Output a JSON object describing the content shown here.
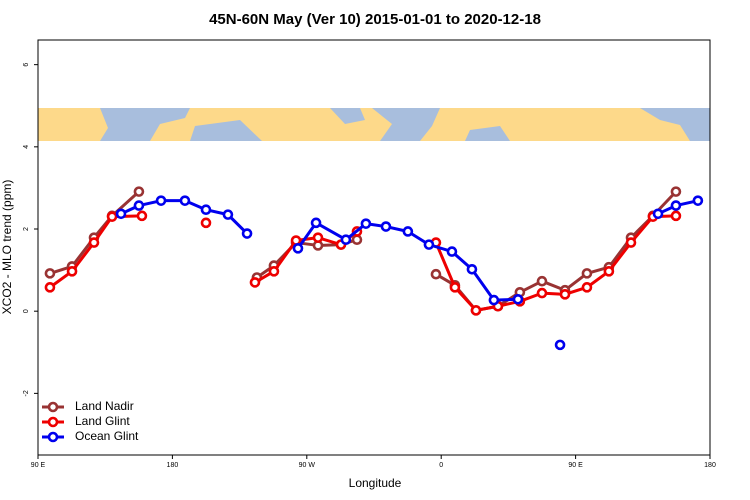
{
  "chart_data": {
    "type": "line",
    "title": "45N-60N May (Ver 10)   2015-01-01 to 2020-12-18",
    "x_label": "Longitude",
    "y_label": "XCO2 - MLO trend (ppm)",
    "xlim": [
      90,
      540
    ],
    "ylim": [
      -3.5,
      6.6
    ],
    "xticks": [
      {
        "value": 90,
        "label": "90 E"
      },
      180,
      {
        "value": 270,
        "label": "90 W"
      },
      {
        "value": 360,
        "label": "0"
      },
      {
        "value": 450,
        "label": "90 E"
      },
      {
        "value": 540,
        "label": "180"
      }
    ],
    "yticks": [
      -2,
      0,
      2,
      4,
      6
    ],
    "legend": "bottom-left",
    "series": [
      {
        "name": "Land Nadir",
        "color": "#993333",
        "x": [
          98,
          112.8,
          127.5,
          139.6,
          157.6,
          180,
          236.6,
          248,
          262.8,
          277.5,
          292.9,
          303.6,
          330,
          356.5,
          369.2,
          383.3,
          398,
          412.7,
          427.5,
          442.9,
          457.6,
          472.3,
          487.1,
          501.8,
          517.2
        ],
        "values": [
          0.92,
          1.09,
          1.79,
          2.32,
          2.91,
          null,
          0.82,
          1.11,
          1.67,
          1.6,
          1.62,
          1.74,
          null,
          0.9,
          0.63,
          0.02,
          0.12,
          0.46,
          0.73,
          0.51,
          0.92,
          1.07,
          1.79,
          2.32,
          2.91
        ]
      },
      {
        "name": "Land Glint",
        "color": "#ee0000",
        "x": [
          98,
          112.8,
          127.5,
          139.6,
          159.6,
          180,
          202.5,
          220,
          235.3,
          248,
          262.8,
          277.5,
          292.9,
          303.6,
          330,
          356.5,
          369.2,
          383.3,
          398,
          412.7,
          427.5,
          442.9,
          457.6,
          472.3,
          487.1,
          501.8,
          517.2
        ],
        "values": [
          0.58,
          0.97,
          1.67,
          2.3,
          2.32,
          null,
          2.15,
          null,
          0.7,
          0.97,
          1.72,
          1.79,
          1.62,
          1.94,
          null,
          1.67,
          0.58,
          0.02,
          0.12,
          0.24,
          0.44,
          0.41,
          0.58,
          0.97,
          1.67,
          2.3,
          2.32
        ]
      },
      {
        "name": "Ocean Glint",
        "color": "#0000ee",
        "x": [
          145.6,
          157.6,
          172.4,
          188.4,
          202.5,
          217.2,
          230,
          245,
          264.1,
          276.2,
          296.2,
          309.6,
          323,
          337.7,
          351.8,
          367.2,
          380.6,
          395.3,
          411.4,
          425,
          439.6,
          470,
          505.2,
          517.2,
          531.9
        ],
        "values": [
          2.37,
          2.57,
          2.69,
          2.69,
          2.47,
          2.35,
          1.89,
          null,
          1.53,
          2.15,
          1.74,
          2.13,
          2.06,
          1.94,
          1.62,
          1.45,
          1.02,
          0.27,
          0.29,
          null,
          -0.82,
          null,
          2.37,
          2.57,
          2.69
        ]
      }
    ]
  }
}
